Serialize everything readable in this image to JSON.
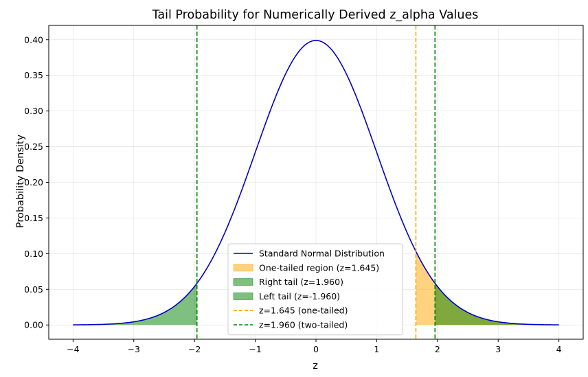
{
  "chart_data": {
    "type": "line",
    "title": "Tail Probability for Numerically Derived z_alpha Values",
    "xlabel": "z",
    "ylabel": "Probability Density",
    "xlim": [
      -4.4,
      4.4
    ],
    "ylim": [
      -0.02,
      0.42
    ],
    "xticks": [
      -4,
      -3,
      -2,
      -1,
      0,
      1,
      2,
      3,
      4
    ],
    "xtick_labels": [
      "−4",
      "−3",
      "−2",
      "−1",
      "0",
      "1",
      "2",
      "3",
      "4"
    ],
    "yticks": [
      0.0,
      0.05,
      0.1,
      0.15,
      0.2,
      0.25,
      0.3,
      0.35,
      0.4
    ],
    "ytick_labels": [
      "0.00",
      "0.05",
      "0.10",
      "0.15",
      "0.20",
      "0.25",
      "0.30",
      "0.35",
      "0.40"
    ],
    "grid": true,
    "curve": {
      "name": "Standard Normal Distribution",
      "color": "#0000cc",
      "x_range": [
        -4,
        4
      ],
      "mean": 0,
      "sd": 1
    },
    "regions": [
      {
        "name": "One-tailed region (z=1.645)",
        "from": 1.645,
        "to": 4,
        "color": "#ffa500",
        "opacity": 0.5
      },
      {
        "name": "Right tail (z=1.960)",
        "from": 1.96,
        "to": 4,
        "color": "#008000",
        "opacity": 0.5
      },
      {
        "name": "Left tail (z=-1.960)",
        "from": -4,
        "to": -1.96,
        "color": "#008000",
        "opacity": 0.5
      }
    ],
    "vlines": [
      {
        "name": "z=1.645 (one-tailed)",
        "x": [
          1.645
        ],
        "color": "#ffa500"
      },
      {
        "name": "z=1.960 (two-tailed)",
        "x": [
          -1.96,
          1.96
        ],
        "color": "#008000"
      }
    ],
    "legend_position": "lower-center"
  }
}
